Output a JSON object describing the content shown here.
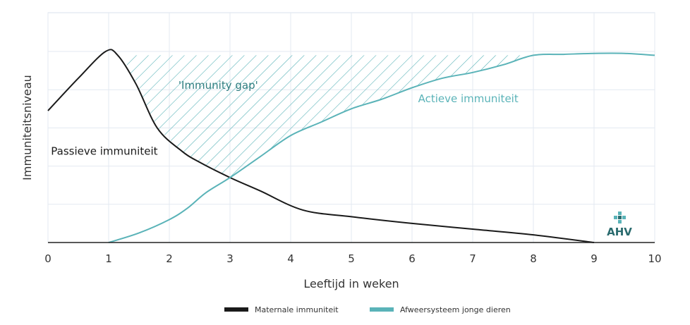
{
  "chart_data": {
    "type": "line",
    "xlabel": "Leeftijd in weken",
    "ylabel": "Immuniteitsniveau",
    "xlim": [
      0,
      10
    ],
    "ylim": [
      0,
      100
    ],
    "x_ticks": [
      "0",
      "1",
      "2",
      "3",
      "4",
      "5",
      "6",
      "7",
      "8",
      "9",
      "10"
    ],
    "grid": true,
    "legend": "bottom-center",
    "series": [
      {
        "name": "Maternale immuniteit",
        "color": "#1a1a1a",
        "points": [
          [
            0,
            69
          ],
          [
            0.5,
            86
          ],
          [
            0.95,
            100
          ],
          [
            1.15,
            98
          ],
          [
            1.45,
            83
          ],
          [
            1.8,
            60
          ],
          [
            2.2,
            48
          ],
          [
            2.5,
            42
          ],
          [
            3,
            34
          ],
          [
            3.5,
            27
          ],
          [
            4.2,
            17
          ],
          [
            5,
            13.5
          ],
          [
            6,
            10
          ],
          [
            7,
            7
          ],
          [
            8,
            4
          ],
          [
            9,
            0
          ]
        ]
      },
      {
        "name": "Afweersysteem jonge dieren",
        "color": "#5ab3b8",
        "points": [
          [
            1,
            0
          ],
          [
            1.5,
            5
          ],
          [
            2,
            12
          ],
          [
            2.3,
            18
          ],
          [
            2.6,
            26
          ],
          [
            3,
            34
          ],
          [
            3.5,
            45
          ],
          [
            4,
            56
          ],
          [
            4.5,
            63
          ],
          [
            5,
            70
          ],
          [
            5.5,
            75
          ],
          [
            6,
            81
          ],
          [
            6.5,
            86
          ],
          [
            7,
            89
          ],
          [
            7.5,
            93
          ],
          [
            8,
            98
          ],
          [
            8.5,
            98.5
          ],
          [
            9,
            99
          ],
          [
            9.5,
            99
          ],
          [
            10,
            98
          ]
        ]
      }
    ],
    "upper_bound": 98,
    "annotations": [
      {
        "text": "Passieve immuniteit",
        "x": 0.05,
        "y": 46,
        "color": "#1a1a1a"
      },
      {
        "text": "'Immunity gap'",
        "x": 2.15,
        "y": 80.5,
        "color": "#2e7d7f"
      },
      {
        "text": "Actieve immuniteit",
        "x": 6.1,
        "y": 73.5,
        "color": "#5ab3b8"
      }
    ]
  },
  "logo": {
    "text": "AHV",
    "color": "#2a6b6e"
  }
}
